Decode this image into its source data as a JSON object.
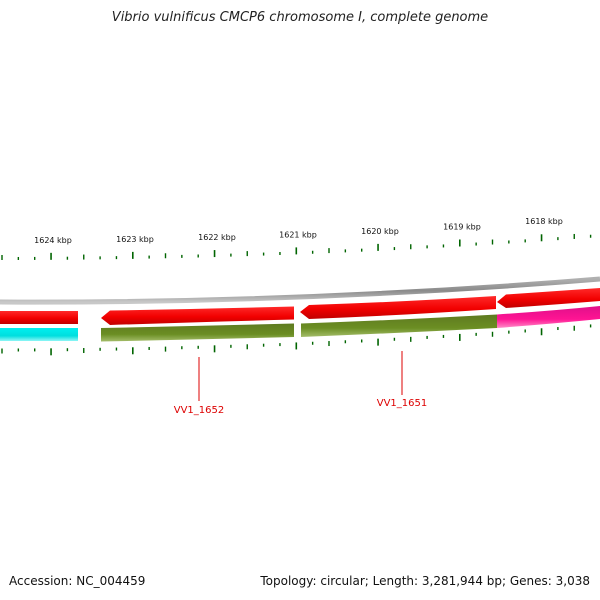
{
  "title": "Vibrio vulnificus CMCP6 chromosome I, complete genome",
  "footer": {
    "accession": "Accession: NC_004459",
    "stats": "Topology: circular; Length: 3,281,944 bp; Genes: 3,038"
  },
  "scale": {
    "unit": "kbp",
    "major_tick_labels": [
      "1624 kbp",
      "1623 kbp",
      "1622 kbp",
      "1621 kbp",
      "1620 kbp",
      "1619 kbp",
      "1618 kbp"
    ]
  },
  "gene_labels": [
    "VV1_1652",
    "VV1_1651"
  ],
  "colors": {
    "backbone": "#888888",
    "forward_feature": "#ff0000",
    "reverse_feature": "#ff0000",
    "cds_track": "#6b8e23",
    "tick": "#006400",
    "cyan_feature": "#00e5ee",
    "magenta_feature": "#ff1493",
    "gene_label": "#dd0000"
  }
}
